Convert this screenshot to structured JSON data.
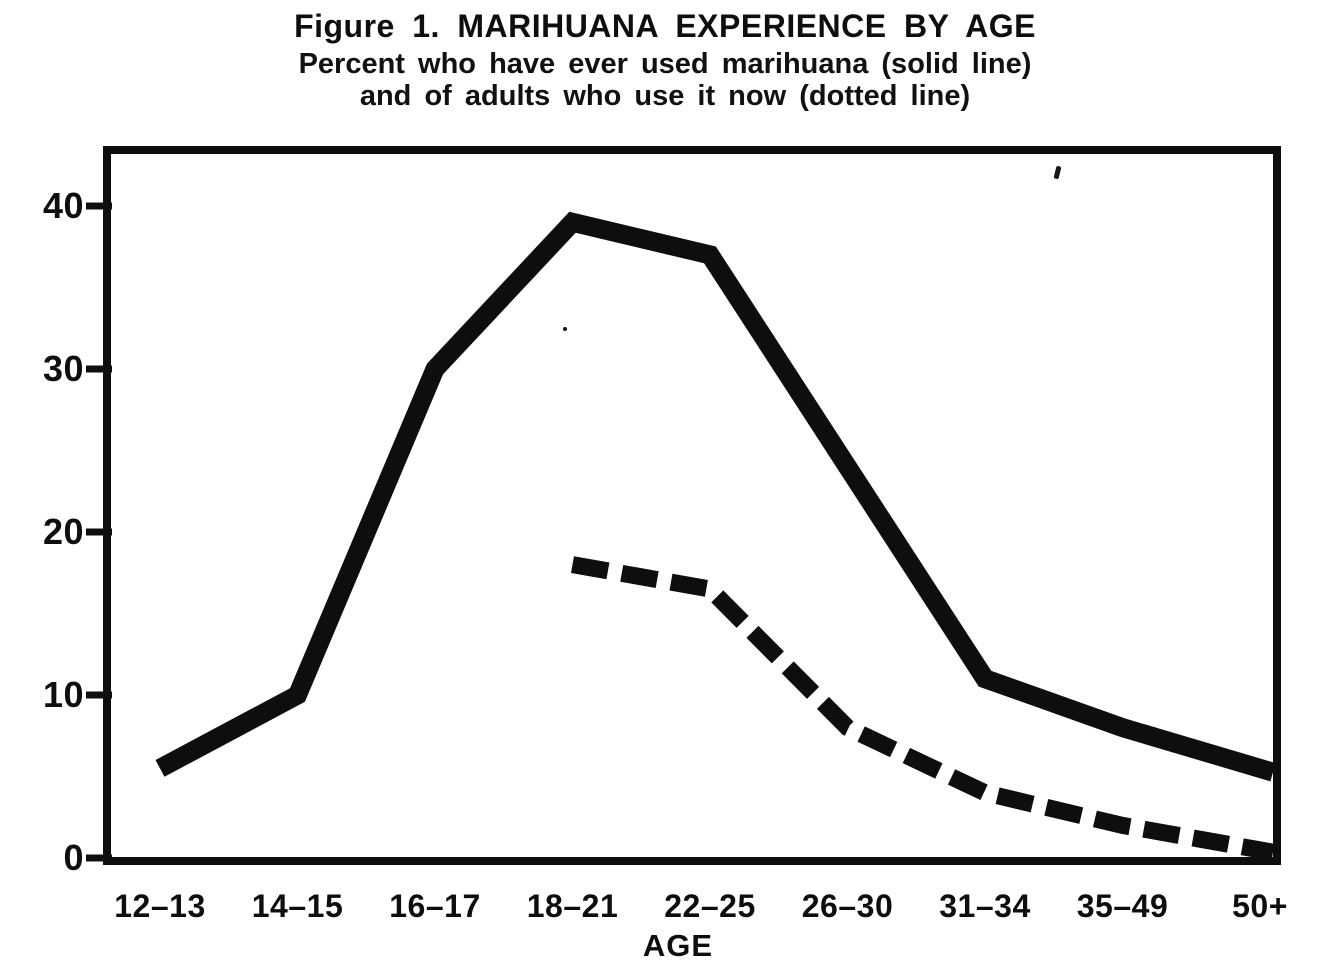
{
  "figure": {
    "label": "Figure 1.",
    "heading": "MARIHUANA EXPERIENCE BY AGE"
  },
  "chart_data": {
    "type": "line",
    "title": "Figure 1. MARIHUANA EXPERIENCE BY AGE",
    "subtitle": [
      "Percent who have ever used marihuana (solid line)",
      "and of adults who use it now (dotted line)"
    ],
    "categories": [
      "12–13",
      "14–15",
      "16–17",
      "18–21",
      "22–25",
      "26–30",
      "31–34",
      "35–49",
      "50+"
    ],
    "series": [
      {
        "name": "Percent who have ever used marihuana",
        "style": "solid",
        "values": [
          5.5,
          10,
          30,
          39,
          37,
          24,
          11,
          8,
          5.5
        ]
      },
      {
        "name": "Percent of adults who use it now",
        "style": "dashed",
        "values": [
          null,
          null,
          null,
          18,
          16.5,
          8,
          4,
          2,
          0.5
        ]
      }
    ],
    "xlabel": "AGE",
    "ylabel": "",
    "ylim": [
      0,
      43
    ],
    "yticks": [
      0,
      10,
      20,
      30,
      40
    ],
    "grid": false,
    "legend": "none",
    "line_color": "#0e0e0e",
    "background_color": "#ffffff"
  }
}
